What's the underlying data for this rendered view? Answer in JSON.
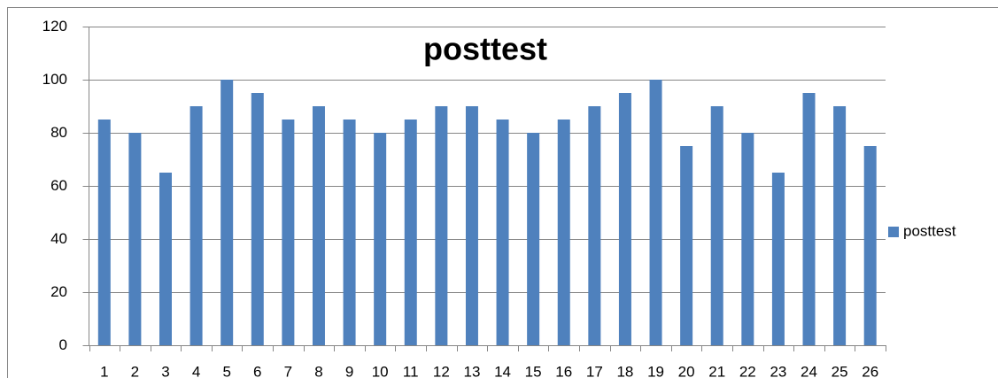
{
  "chart_data": {
    "type": "bar",
    "title": "posttest",
    "categories": [
      "1",
      "2",
      "3",
      "4",
      "5",
      "6",
      "7",
      "8",
      "9",
      "10",
      "11",
      "12",
      "13",
      "14",
      "15",
      "16",
      "17",
      "18",
      "19",
      "20",
      "21",
      "22",
      "23",
      "24",
      "25",
      "26"
    ],
    "series": [
      {
        "name": "posttest",
        "color": "#4f81bd",
        "values": [
          85,
          80,
          65,
          90,
          100,
          95,
          85,
          90,
          85,
          80,
          85,
          90,
          90,
          85,
          80,
          85,
          90,
          95,
          100,
          75,
          90,
          80,
          65,
          95,
          90,
          75
        ]
      }
    ],
    "ylim": [
      0,
      120
    ],
    "yticks": [
      0,
      20,
      40,
      60,
      80,
      100,
      120
    ],
    "grid": true,
    "legend": "right"
  }
}
